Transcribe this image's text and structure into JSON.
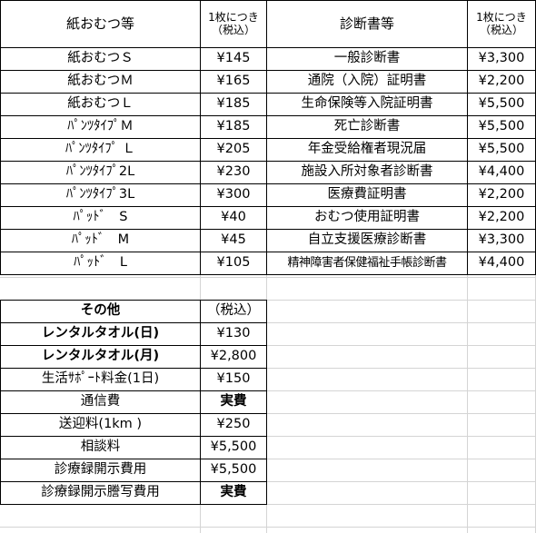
{
  "products": {
    "header": {
      "name": "紙おむつ等",
      "price_line1": "1枚につき",
      "price_line2": "（税込）"
    },
    "rows": [
      {
        "name": "紙おむつＳ",
        "price": "¥145"
      },
      {
        "name": "紙おむつＭ",
        "price": "¥165"
      },
      {
        "name": "紙おむつＬ",
        "price": "¥185"
      },
      {
        "name": "ﾊﾟﾝﾂﾀｲﾌﾟＭ",
        "price": "¥185"
      },
      {
        "name": "ﾊﾟﾝﾂﾀｲﾌﾟ Ｌ",
        "price": "¥205"
      },
      {
        "name": "ﾊﾟﾝﾂﾀｲﾌﾟ2L",
        "price": "¥230"
      },
      {
        "name": "ﾊﾟﾝﾂﾀｲﾌﾟ3L",
        "price": "¥300"
      },
      {
        "name": "ﾊﾟｯﾄﾞ　S",
        "price": "¥40"
      },
      {
        "name": "ﾊﾟｯﾄﾞ　M",
        "price": "¥45"
      },
      {
        "name": "ﾊﾟｯﾄﾞ　L",
        "price": "¥105"
      }
    ]
  },
  "certificates": {
    "header": {
      "name": "診断書等",
      "price_line1": "1枚につき",
      "price_line2": "（税込）"
    },
    "rows": [
      {
        "name": "一般診断書",
        "price": "¥3,300"
      },
      {
        "name": "通院（入院）証明書",
        "price": "¥2,200"
      },
      {
        "name": "生命保険等入院証明書",
        "price": "¥5,500"
      },
      {
        "name": "死亡診断書",
        "price": "¥5,500"
      },
      {
        "name": "年金受給権者現況届",
        "price": "¥5,500"
      },
      {
        "name": "施設入所対象者診断書",
        "price": "¥4,400"
      },
      {
        "name": "医療費証明書",
        "price": "¥2,200"
      },
      {
        "name": "おむつ使用証明書",
        "price": "¥2,200"
      },
      {
        "name": "自立支援医療診断書",
        "price": "¥3,300"
      },
      {
        "name": "精神障害者保健福祉手帳診断書",
        "price": "¥4,400"
      }
    ]
  },
  "others": {
    "header": {
      "name": "その他",
      "price": "（税込）"
    },
    "rows": [
      {
        "name": "レンタルタオル(日)",
        "price": "¥130"
      },
      {
        "name": "レンタルタオル(月)",
        "price": "¥2,800"
      },
      {
        "name": "生活ｻﾎﾟｰﾄ料金(1日)",
        "price": "¥150"
      },
      {
        "name": "通信費",
        "price": "実費"
      },
      {
        "name": "送迎料(1km )",
        "price": "¥250"
      },
      {
        "name": "相談料",
        "price": "¥5,500"
      },
      {
        "name": "診療録開示費用",
        "price": "¥5,500"
      },
      {
        "name": "診療録開示謄写費用",
        "price": "実費"
      }
    ]
  }
}
